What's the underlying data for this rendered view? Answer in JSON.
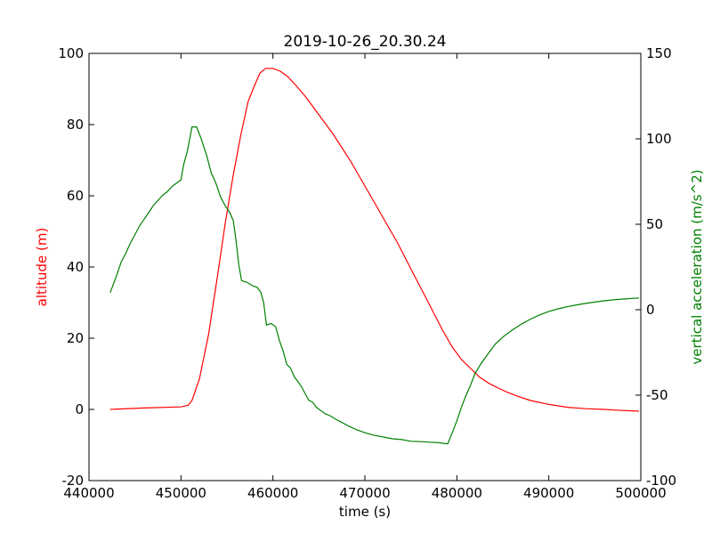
{
  "chart_data": {
    "type": "line",
    "title": "2019-10-26_20.30.24",
    "xlabel": "time (s)",
    "ylabel_left": "altitude (m)",
    "ylabel_right": "vertical acceleration (m/s^2)",
    "xlim": [
      440000,
      500000
    ],
    "ylim_left": [
      -20,
      100
    ],
    "ylim_right": [
      -100,
      150
    ],
    "x_ticks": [
      440000,
      450000,
      460000,
      470000,
      480000,
      490000,
      500000
    ],
    "left_ticks": [
      -20,
      0,
      20,
      40,
      60,
      80,
      100
    ],
    "right_ticks": [
      -100,
      -50,
      0,
      50,
      100,
      150
    ],
    "grid": false,
    "colors": {
      "altitude": "#ff0000",
      "acceleration": "#008000",
      "axes": "#000000"
    },
    "series": [
      {
        "axis": "left",
        "color": "#ff0000",
        "points": [
          [
            442300,
            0.0
          ],
          [
            446000,
            0.4
          ],
          [
            450000,
            0.7
          ],
          [
            450800,
            1.2
          ],
          [
            451200,
            2.5
          ],
          [
            452000,
            8.5
          ],
          [
            453000,
            21
          ],
          [
            454000,
            38
          ],
          [
            454800,
            52
          ],
          [
            455700,
            66
          ],
          [
            456500,
            77
          ],
          [
            457300,
            86.5
          ],
          [
            458000,
            91
          ],
          [
            458600,
            94.5
          ],
          [
            459200,
            95.8
          ],
          [
            460000,
            95.8
          ],
          [
            460800,
            95
          ],
          [
            461600,
            93.5
          ],
          [
            462500,
            91
          ],
          [
            463500,
            88
          ],
          [
            464500,
            84.5
          ],
          [
            465500,
            81
          ],
          [
            466500,
            77.5
          ],
          [
            467500,
            73.5
          ],
          [
            468500,
            69.5
          ],
          [
            469500,
            65
          ],
          [
            470500,
            60.5
          ],
          [
            471500,
            56
          ],
          [
            472500,
            51.5
          ],
          [
            473500,
            47
          ],
          [
            474500,
            42
          ],
          [
            475500,
            37
          ],
          [
            476500,
            32
          ],
          [
            477500,
            27
          ],
          [
            478500,
            22
          ],
          [
            479500,
            17.5
          ],
          [
            480500,
            14
          ],
          [
            481500,
            11.5
          ],
          [
            482500,
            9
          ],
          [
            483500,
            7.3
          ],
          [
            484500,
            6
          ],
          [
            485500,
            4.8
          ],
          [
            486500,
            3.8
          ],
          [
            488000,
            2.5
          ],
          [
            490000,
            1.4
          ],
          [
            492000,
            0.6
          ],
          [
            494000,
            0.2
          ],
          [
            496000,
            0.0
          ],
          [
            498000,
            -0.3
          ],
          [
            499800,
            -0.5
          ]
        ]
      },
      {
        "axis": "right",
        "color": "#008000",
        "points": [
          [
            442300,
            10
          ],
          [
            443000,
            20
          ],
          [
            443500,
            28
          ],
          [
            444000,
            33
          ],
          [
            444500,
            39
          ],
          [
            445000,
            44
          ],
          [
            445500,
            49
          ],
          [
            446000,
            53
          ],
          [
            446500,
            57
          ],
          [
            447000,
            61
          ],
          [
            447500,
            64
          ],
          [
            448000,
            67
          ],
          [
            448500,
            69
          ],
          [
            449000,
            72
          ],
          [
            449500,
            74
          ],
          [
            450000,
            76
          ],
          [
            450300,
            85
          ],
          [
            450700,
            93
          ],
          [
            451200,
            107
          ],
          [
            451700,
            107
          ],
          [
            452200,
            100
          ],
          [
            452800,
            90
          ],
          [
            453300,
            80
          ],
          [
            453800,
            74
          ],
          [
            454300,
            66
          ],
          [
            454800,
            61
          ],
          [
            455300,
            57
          ],
          [
            455700,
            52
          ],
          [
            456000,
            40
          ],
          [
            456300,
            26
          ],
          [
            456600,
            17
          ],
          [
            457200,
            16
          ],
          [
            457800,
            14
          ],
          [
            458300,
            13
          ],
          [
            458700,
            10
          ],
          [
            459000,
            4
          ],
          [
            459300,
            -9
          ],
          [
            459800,
            -8
          ],
          [
            460300,
            -10
          ],
          [
            460700,
            -18
          ],
          [
            461100,
            -24
          ],
          [
            461500,
            -32
          ],
          [
            461900,
            -34
          ],
          [
            462300,
            -39
          ],
          [
            462700,
            -42
          ],
          [
            463100,
            -45
          ],
          [
            463500,
            -49
          ],
          [
            463900,
            -53
          ],
          [
            464300,
            -54
          ],
          [
            464700,
            -57
          ],
          [
            465200,
            -59
          ],
          [
            465700,
            -61
          ],
          [
            466200,
            -62
          ],
          [
            466800,
            -64
          ],
          [
            467500,
            -66
          ],
          [
            468200,
            -68
          ],
          [
            469000,
            -70
          ],
          [
            470000,
            -72
          ],
          [
            471000,
            -73.5
          ],
          [
            472000,
            -74.5
          ],
          [
            473000,
            -75.5
          ],
          [
            474000,
            -76
          ],
          [
            475000,
            -77
          ],
          [
            476000,
            -77.2
          ],
          [
            477000,
            -77.5
          ],
          [
            478000,
            -77.8
          ],
          [
            479000,
            -78.5
          ],
          [
            479500,
            -72
          ],
          [
            480000,
            -65
          ],
          [
            480500,
            -57
          ],
          [
            481000,
            -50
          ],
          [
            481500,
            -44
          ],
          [
            482000,
            -37
          ],
          [
            482700,
            -31
          ],
          [
            483500,
            -25
          ],
          [
            484200,
            -20
          ],
          [
            485000,
            -16
          ],
          [
            486000,
            -12
          ],
          [
            487000,
            -8.5
          ],
          [
            488000,
            -5.5
          ],
          [
            489000,
            -3
          ],
          [
            490000,
            -1
          ],
          [
            491000,
            0.5
          ],
          [
            492000,
            1.7
          ],
          [
            493000,
            2.8
          ],
          [
            494000,
            3.7
          ],
          [
            495000,
            4.5
          ],
          [
            496000,
            5.2
          ],
          [
            497000,
            5.8
          ],
          [
            498000,
            6.2
          ],
          [
            499000,
            6.6
          ],
          [
            499800,
            6.8
          ]
        ]
      }
    ]
  }
}
